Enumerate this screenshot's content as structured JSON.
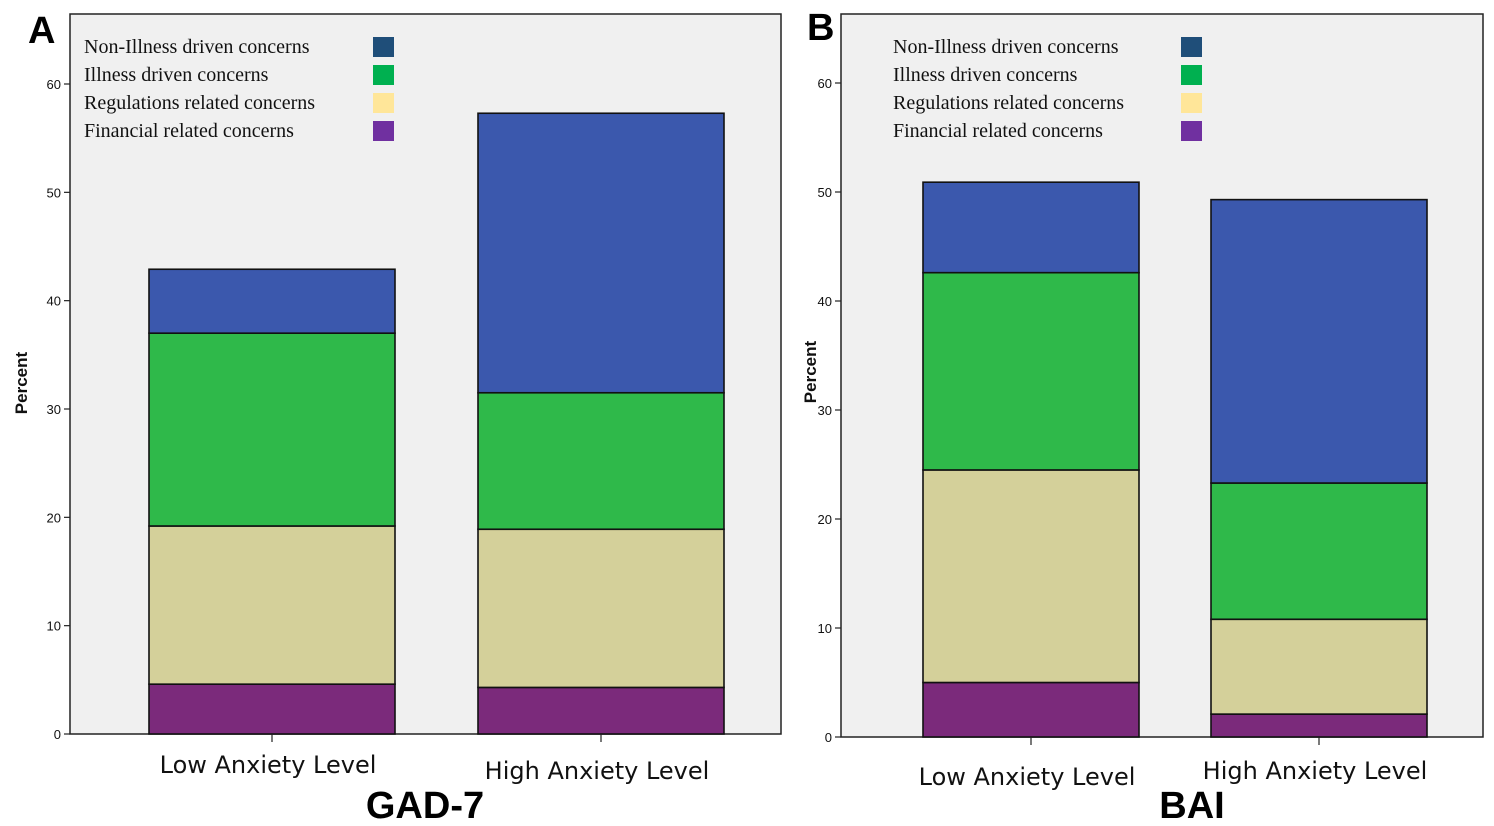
{
  "chart_data": [
    {
      "type": "bar",
      "stacked": true,
      "panel_label": "A",
      "title": "GAD-7",
      "ylabel": "Percent",
      "xlabel": "",
      "ylim": [
        0,
        66
      ],
      "yticks": [
        0,
        10,
        20,
        30,
        40,
        50,
        60
      ],
      "grid": false,
      "legend_position": "top-left",
      "categories": [
        "Low Anxiety Level",
        "High Anxiety Level"
      ],
      "series": [
        {
          "name": "Financial related concerns",
          "color": "#7b2a7b",
          "values": [
            4.6,
            4.3
          ]
        },
        {
          "name": "Regulations related concerns",
          "color": "#d4d09a",
          "values": [
            14.6,
            14.6
          ]
        },
        {
          "name": "Illness driven concerns",
          "color": "#2fb94a",
          "values": [
            17.8,
            12.6
          ]
        },
        {
          "name": "Non-Illness driven concerns",
          "color": "#3b58ad",
          "values": [
            5.9,
            25.8
          ]
        }
      ]
    },
    {
      "type": "bar",
      "stacked": true,
      "panel_label": "B",
      "title": "BAI",
      "ylabel": "Percent",
      "xlabel": "",
      "ylim": [
        0,
        66
      ],
      "yticks": [
        0,
        10,
        20,
        30,
        40,
        50,
        60
      ],
      "grid": false,
      "legend_position": "top-left",
      "categories": [
        "Low Anxiety Level",
        "High Anxiety Level"
      ],
      "series": [
        {
          "name": "Financial related concerns",
          "color": "#7b2a7b",
          "values": [
            5.0,
            2.1
          ]
        },
        {
          "name": "Regulations related concerns",
          "color": "#d4d09a",
          "values": [
            19.5,
            8.7
          ]
        },
        {
          "name": "Illness driven concerns",
          "color": "#2fb94a",
          "values": [
            18.1,
            12.5
          ]
        },
        {
          "name": "Non-Illness driven concerns",
          "color": "#3b58ad",
          "values": [
            8.3,
            26.0
          ]
        }
      ]
    }
  ],
  "legend": {
    "items": [
      {
        "label": "Non-Illness driven concerns",
        "color": "#1f4e79"
      },
      {
        "label": "Illness driven concerns",
        "color": "#00b050"
      },
      {
        "label": "Regulations related concerns",
        "color": "#ffe699"
      },
      {
        "label": "Financial related concerns",
        "color": "#7030a0"
      }
    ]
  }
}
